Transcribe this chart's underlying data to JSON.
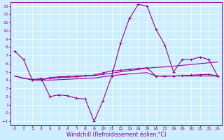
{
  "xlabel": "Windchill (Refroidissement éolien,°C)",
  "bg_color": "#cceeff",
  "line_color": "#990099",
  "grid_color": "#ffffff",
  "xlim": [
    -0.5,
    23.5
  ],
  "ylim": [
    -1.5,
    13.5
  ],
  "xticks": [
    0,
    1,
    2,
    3,
    4,
    5,
    6,
    7,
    8,
    9,
    10,
    11,
    12,
    13,
    14,
    15,
    16,
    17,
    18,
    19,
    20,
    21,
    22,
    23
  ],
  "yticks": [
    -1,
    0,
    1,
    2,
    3,
    4,
    5,
    6,
    7,
    8,
    9,
    10,
    11,
    12,
    13
  ],
  "series1_x": [
    0,
    1,
    2,
    3,
    4,
    5,
    6,
    7,
    8,
    9,
    10,
    11,
    12,
    13,
    14,
    15,
    16,
    17,
    18,
    19,
    20,
    21,
    22,
    23
  ],
  "series1_y": [
    7.5,
    6.5,
    4.0,
    4.2,
    2.0,
    2.2,
    2.1,
    1.8,
    1.7,
    -1.0,
    1.5,
    4.5,
    8.5,
    11.5,
    13.2,
    13.0,
    10.2,
    8.3,
    5.0,
    6.5,
    6.5,
    6.8,
    6.5,
    4.5
  ],
  "series2_x": [
    0,
    1,
    2,
    3,
    4,
    5,
    6,
    7,
    8,
    9,
    10,
    11,
    12,
    13,
    14,
    15,
    16,
    17,
    18,
    19,
    20,
    21,
    22,
    23
  ],
  "series2_y": [
    4.5,
    4.2,
    4.1,
    4.1,
    4.2,
    4.3,
    4.35,
    4.4,
    4.5,
    4.55,
    4.7,
    4.85,
    5.0,
    5.15,
    5.3,
    5.45,
    5.55,
    5.6,
    5.7,
    5.8,
    5.9,
    6.0,
    6.1,
    6.2
  ],
  "series3_x": [
    0,
    2,
    3,
    4,
    5,
    6,
    7,
    8,
    9,
    10,
    11,
    12,
    13,
    14,
    15,
    16,
    17,
    18,
    19,
    20,
    21,
    22,
    23
  ],
  "series3_y": [
    4.5,
    4.0,
    4.0,
    4.0,
    4.05,
    4.1,
    4.15,
    4.2,
    4.25,
    4.4,
    4.55,
    4.65,
    4.75,
    4.85,
    4.9,
    4.5,
    4.5,
    4.5,
    4.5,
    4.5,
    4.5,
    4.5,
    4.5
  ],
  "series4_x": [
    2,
    3,
    4,
    5,
    6,
    7,
    8,
    9,
    10,
    11,
    12,
    13,
    14,
    15,
    16,
    17,
    18,
    19,
    20,
    21,
    22,
    23
  ],
  "series4_y": [
    4.0,
    4.0,
    4.3,
    4.4,
    4.45,
    4.5,
    4.55,
    4.6,
    4.9,
    5.1,
    5.2,
    5.3,
    5.4,
    5.5,
    4.5,
    4.45,
    4.5,
    4.55,
    4.6,
    4.65,
    4.7,
    4.5
  ],
  "tick_fontsize": 4.5,
  "xlabel_fontsize": 5.5
}
